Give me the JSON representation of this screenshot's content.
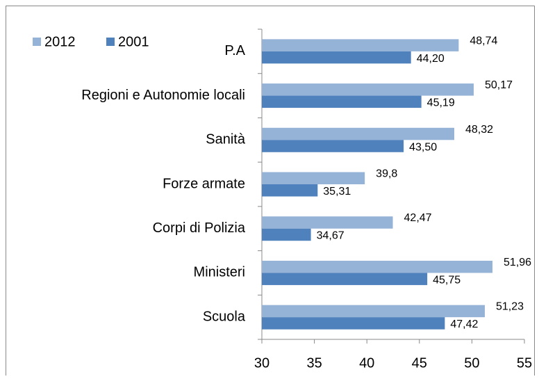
{
  "chart_data": {
    "type": "hbar",
    "categories": [
      "P.A",
      "Regioni e Autonomie locali",
      "Sanità",
      "Forze armate",
      "Corpi di Polizia",
      "Ministeri",
      "Scuola"
    ],
    "series": [
      {
        "name": "2012",
        "color": "#95b3d7",
        "values": [
          48.74,
          50.17,
          48.32,
          39.8,
          42.47,
          51.96,
          51.23
        ],
        "value_labels": [
          "48,74",
          "50,17",
          "48,32",
          "39,8",
          "42,47",
          "51,96",
          "51,23"
        ]
      },
      {
        "name": "2001",
        "color": "#4f81bd",
        "values": [
          44.2,
          45.19,
          43.5,
          35.31,
          34.67,
          45.75,
          47.42
        ],
        "value_labels": [
          "44,20",
          "45,19",
          "43,50",
          "35,31",
          "34,67",
          "45,75",
          "47,42"
        ]
      }
    ],
    "xlim": [
      30,
      55
    ],
    "xticks": [
      30,
      35,
      40,
      45,
      50,
      55
    ],
    "grid": false,
    "legend": "top-left"
  }
}
